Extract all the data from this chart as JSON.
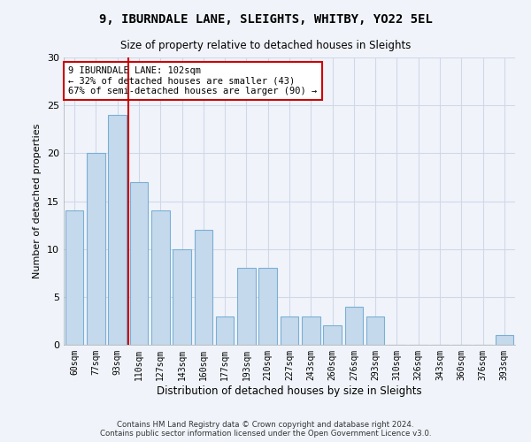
{
  "title": "9, IBURNDALE LANE, SLEIGHTS, WHITBY, YO22 5EL",
  "subtitle": "Size of property relative to detached houses in Sleights",
  "xlabel": "Distribution of detached houses by size in Sleights",
  "ylabel": "Number of detached properties",
  "categories": [
    "60sqm",
    "77sqm",
    "93sqm",
    "110sqm",
    "127sqm",
    "143sqm",
    "160sqm",
    "177sqm",
    "193sqm",
    "210sqm",
    "227sqm",
    "243sqm",
    "260sqm",
    "276sqm",
    "293sqm",
    "310sqm",
    "326sqm",
    "343sqm",
    "360sqm",
    "376sqm",
    "393sqm"
  ],
  "values": [
    14,
    20,
    24,
    17,
    14,
    10,
    12,
    3,
    8,
    8,
    3,
    3,
    2,
    4,
    3,
    0,
    0,
    0,
    0,
    0,
    1
  ],
  "bar_color": "#c5d9ed",
  "bar_edge_color": "#7aafd4",
  "red_line_x": 2.5,
  "annotation_text": "9 IBURNDALE LANE: 102sqm\n← 32% of detached houses are smaller (43)\n67% of semi-detached houses are larger (90) →",
  "annotation_box_color": "#ffffff",
  "annotation_box_edge": "#cc0000",
  "ylim": [
    0,
    30
  ],
  "yticks": [
    0,
    5,
    10,
    15,
    20,
    25,
    30
  ],
  "background_color": "#f0f4fa",
  "grid_color": "#d0d8e8",
  "footer_line1": "Contains HM Land Registry data © Crown copyright and database right 2024.",
  "footer_line2": "Contains public sector information licensed under the Open Government Licence v3.0."
}
